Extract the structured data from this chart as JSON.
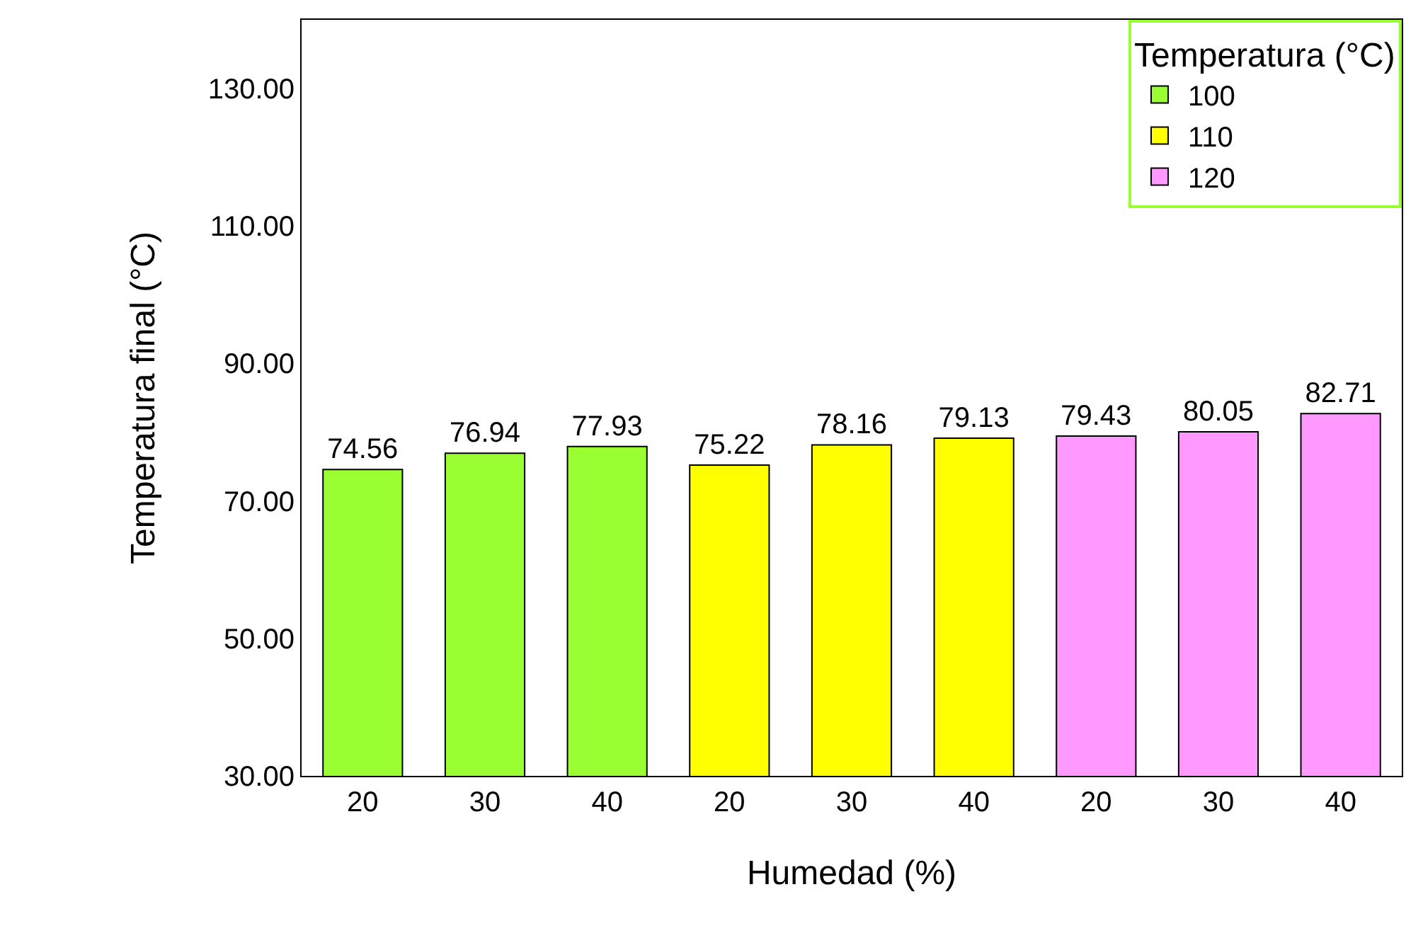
{
  "chart_data": {
    "type": "bar",
    "xlabel": "Humedad (%)",
    "ylabel": "Temperatura final (°C)",
    "legend_title": "Temperatura (°C)",
    "categories": [
      "20",
      "30",
      "40",
      "20",
      "30",
      "40",
      "20",
      "30",
      "40"
    ],
    "series": [
      {
        "name": "100",
        "color": "#99ff33",
        "values": [
          74.56,
          76.94,
          77.93,
          null,
          null,
          null,
          null,
          null,
          null
        ]
      },
      {
        "name": "110",
        "color": "#ffff00",
        "values": [
          null,
          null,
          null,
          75.22,
          78.16,
          79.13,
          null,
          null,
          null
        ]
      },
      {
        "name": "120",
        "color": "#ff99ff",
        "values": [
          null,
          null,
          null,
          null,
          null,
          null,
          79.43,
          80.05,
          82.71
        ]
      }
    ],
    "ylim": [
      30,
      140
    ],
    "yticks": [
      {
        "value": 30,
        "label": "30.00"
      },
      {
        "value": 50,
        "label": "50.00"
      },
      {
        "value": 70,
        "label": "70.00"
      },
      {
        "value": 90,
        "label": "90.00"
      },
      {
        "value": 110,
        "label": "110.00"
      },
      {
        "value": 130,
        "label": "130.00"
      }
    ],
    "data_labels": true,
    "legend": "top right"
  }
}
